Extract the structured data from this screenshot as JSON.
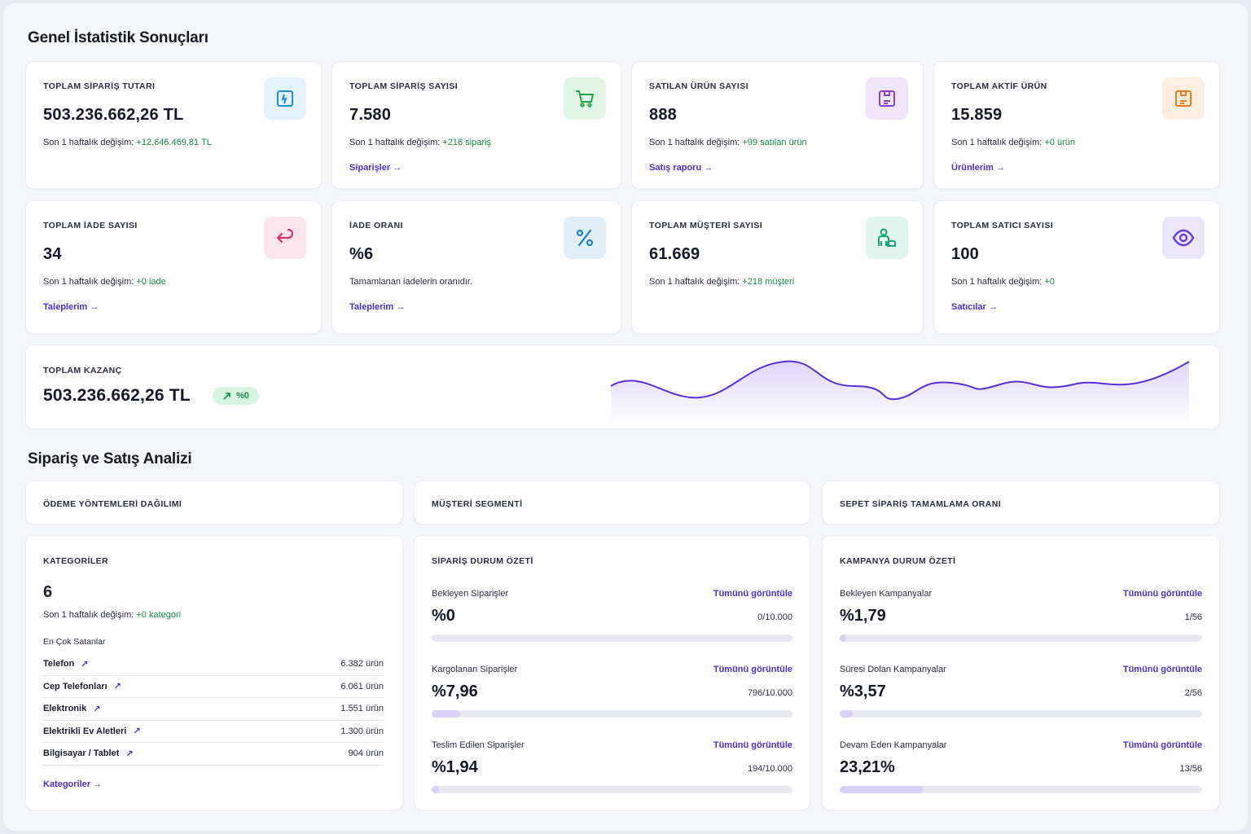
{
  "sections": {
    "general": "Genel İstatistik Sonuçları",
    "analysis": "Sipariş ve Satış Analizi"
  },
  "stats": [
    {
      "label": "TOPLAM SİPARİŞ TUTARI",
      "value": "503.236.662,26 TL",
      "change_prefix": "Son 1 haftalık değişim:",
      "change": "+12.646.469,81 TL",
      "link": "",
      "icon": "receipt-icon",
      "color": "#1a8fd6",
      "bg": "#e3f2fd"
    },
    {
      "label": "TOPLAM SİPARİŞ SAYISI",
      "value": "7.580",
      "change_prefix": "Son 1 haftalık değişim:",
      "change": "+216 sipariş",
      "link": "Siparişler →",
      "icon": "cart-icon",
      "color": "#22a447",
      "bg": "#e2f6e7"
    },
    {
      "label": "SATILAN ÜRÜN SAYISI",
      "value": "888",
      "change_prefix": "Son 1 haftalık değişim:",
      "change": "+99 satılan ürün",
      "link": "Satış raporu →",
      "icon": "box-icon",
      "color": "#8a3fd6",
      "bg": "#f0e6fb"
    },
    {
      "label": "TOPLAM AKTİF ÜRÜN",
      "value": "15.859",
      "change_prefix": "Son 1 haftalık değişim:",
      "change": "+0 ürün",
      "link": "Ürünlerim →",
      "icon": "package-icon",
      "color": "#f07a1a",
      "bg": "#fdeee0"
    },
    {
      "label": "TOPLAM İADE SAYISI",
      "value": "34",
      "change_prefix": "Son 1 haftalık değişim:",
      "change": "+0 iade",
      "link": "Taleplerim →",
      "icon": "return-icon",
      "color": "#d6336c",
      "bg": "#fbe4ec"
    },
    {
      "label": "İADE ORANI",
      "value": "%6",
      "change_prefix": "Tamamlanan iadelerin oranıdır.",
      "change": "",
      "link": "Taleplerim →",
      "icon": "percent-icon",
      "color": "#1a7fc1",
      "bg": "#e1eef7"
    },
    {
      "label": "TOPLAM MÜŞTERİ SAYISI",
      "value": "61.669",
      "change_prefix": "Son 1 haftalık değişim:",
      "change": "+218 müşteri",
      "link": "",
      "icon": "users-icon",
      "color": "#1aa37a",
      "bg": "#dff5ee"
    },
    {
      "label": "TOPLAM SATICI SAYISI",
      "value": "100",
      "change_prefix": "Son 1 haftalık değişim:",
      "change": "+0",
      "link": "Satıcılar →",
      "icon": "eye-icon",
      "color": "#6a3fd6",
      "bg": "#ece6fb"
    }
  ],
  "earnings": {
    "label": "TOPLAM KAZANÇ",
    "value": "503.236.662,26 TL",
    "badge": "%0",
    "badge_icon": "trend-up-icon"
  },
  "analysis_heads": [
    "ÖDEME YÖNTEMLERİ DAĞILIMI",
    "MÜŞTERİ SEGMENTİ",
    "SEPET SİPARİŞ TAMAMLAMA ORANI"
  ],
  "categories": {
    "label": "KATEGORİLER",
    "value": "6",
    "change_prefix": "Son 1 haftalık değişim:",
    "change": "+0 kategori",
    "sub": "En Çok Satanlar",
    "items": [
      {
        "name": "Telefon",
        "count": "6.382 ürün"
      },
      {
        "name": "Cep Telefonları",
        "count": "6.061 ürün"
      },
      {
        "name": "Elektronik",
        "count": "1.551 ürün"
      },
      {
        "name": "Elektrikli Ev Aletleri",
        "count": "1.300 ürün"
      },
      {
        "name": "Bilgisayar / Tablet",
        "count": "904 ürün"
      }
    ],
    "link": "Kategoriler →"
  },
  "order_summary": {
    "label": "SİPARİŞ DURUM ÖZETİ",
    "rows": [
      {
        "title": "Bekleyen Siparişler",
        "link": "Tümünü görüntüle",
        "percent": "%0",
        "ratio": "0/10.000",
        "fraction": 0
      },
      {
        "title": "Kargolanan Siparişler",
        "link": "Tümünü görüntüle",
        "percent": "%7,96",
        "ratio": "796/10.000",
        "fraction": 0.0796
      },
      {
        "title": "Teslim Edilen Siparişler",
        "link": "Tümünü görüntüle",
        "percent": "%1,94",
        "ratio": "194/10.000",
        "fraction": 0.0194
      }
    ]
  },
  "campaign_summary": {
    "label": "KAMPANYA DURUM ÖZETİ",
    "rows": [
      {
        "title": "Bekleyen Kampanyalar",
        "link": "Tümünü görüntüle",
        "percent": "%1,79",
        "ratio": "1/56",
        "fraction": 0.0179
      },
      {
        "title": "Süresi Dolan Kampanyalar",
        "link": "Tümünü görüntüle",
        "percent": "%3,57",
        "ratio": "2/56",
        "fraction": 0.0357
      },
      {
        "title": "Devam Eden Kampanyalar",
        "link": "Tümünü görüntüle",
        "percent": "23,21%",
        "ratio": "13/56",
        "fraction": 0.2321
      }
    ]
  }
}
